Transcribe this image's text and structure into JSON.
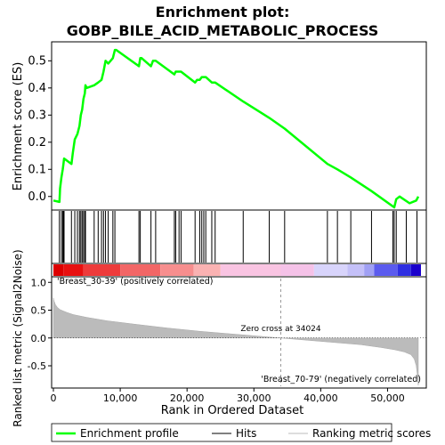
{
  "chart_data": [
    {
      "type": "line",
      "panel": "enrichment-profile",
      "title_line1": "Enrichment plot:",
      "title_line2": "GOBP_BILE_ACID_METABOLIC_PROCESS",
      "ylabel": "Enrichment score (ES)",
      "ylim": [
        -0.05,
        0.57
      ],
      "yticks": [
        0.0,
        0.1,
        0.2,
        0.3,
        0.4,
        0.5
      ],
      "ytick_labels": [
        "0.0",
        "0.1",
        "0.2",
        "0.3",
        "0.4",
        "0.5"
      ],
      "xlim": [
        0,
        55000
      ],
      "series": [
        {
          "name": "Enrichment profile",
          "color": "#00ff00",
          "x": [
            0,
            900,
            1000,
            1200,
            1400,
            1500,
            1600,
            2700,
            2900,
            3200,
            3600,
            3900,
            4100,
            4300,
            4500,
            4700,
            4800,
            5000,
            6100,
            6700,
            7200,
            7500,
            7800,
            8200,
            8900,
            9200,
            9400,
            12800,
            13000,
            13200,
            14600,
            14900,
            15300,
            18100,
            18300,
            18600,
            18800,
            19100,
            21200,
            21500,
            21900,
            22200,
            22500,
            22800,
            23700,
            24200,
            28400,
            32300,
            34600,
            41000,
            42500,
            44500,
            47600,
            51000,
            51300,
            51800,
            53300,
            54300,
            54600
          ],
          "y": [
            -0.015,
            -0.02,
            0.03,
            0.07,
            0.1,
            0.12,
            0.14,
            0.12,
            0.16,
            0.21,
            0.23,
            0.26,
            0.3,
            0.32,
            0.36,
            0.38,
            0.41,
            0.4,
            0.41,
            0.42,
            0.43,
            0.46,
            0.5,
            0.49,
            0.51,
            0.54,
            0.54,
            0.48,
            0.51,
            0.51,
            0.48,
            0.5,
            0.5,
            0.45,
            0.46,
            0.46,
            0.46,
            0.46,
            0.42,
            0.43,
            0.43,
            0.44,
            0.44,
            0.44,
            0.42,
            0.42,
            0.35,
            0.29,
            0.25,
            0.12,
            0.1,
            0.07,
            0.02,
            -0.04,
            -0.01,
            0.0,
            -0.025,
            -0.015,
            0.0
          ]
        }
      ]
    },
    {
      "type": "hits",
      "panel": "hit-markers",
      "series": [
        {
          "name": "Hits",
          "color": "#000000",
          "x": [
            900,
            1200,
            1400,
            1500,
            1600,
            2700,
            3200,
            3600,
            3900,
            4100,
            4300,
            4500,
            4700,
            4800,
            6100,
            6700,
            7200,
            7500,
            7800,
            8200,
            8900,
            9200,
            12800,
            13000,
            14600,
            15300,
            18100,
            18300,
            18800,
            19100,
            21200,
            21900,
            22200,
            22500,
            22800,
            23700,
            24200,
            28400,
            32300,
            34600,
            41000,
            42500,
            44500,
            47600,
            50800,
            51000,
            51300,
            52800,
            54400
          ]
        }
      ]
    },
    {
      "type": "area",
      "panel": "ranked-list-metric",
      "xlabel": "Rank in Ordered Dataset",
      "ylabel": "Ranked list metric (Signal2Noise)",
      "xlim": [
        0,
        55000
      ],
      "ylim": [
        -0.9,
        1.1
      ],
      "xticks": [
        0,
        10000,
        20000,
        30000,
        40000,
        50000
      ],
      "xtick_labels": [
        "0",
        "10,000",
        "20,000",
        "30,000",
        "40,000",
        "50,000"
      ],
      "yticks": [
        -0.5,
        0.0,
        0.5,
        1.0
      ],
      "ytick_labels": [
        "-0.5",
        "0.0",
        "0.5",
        "1.0"
      ],
      "zero_cross": 34024,
      "zero_cross_label": "Zero cross at 34024",
      "positive_label": "'Breast_30-39' (positively correlated)",
      "negative_label": "'Breast_70-79' (negatively correlated)",
      "series": [
        {
          "name": "Ranking metric scores",
          "color": "#bbbbbb",
          "x": [
            0,
            100,
            300,
            600,
            1000,
            2000,
            3000,
            5000,
            8000,
            12000,
            17000,
            22000,
            27000,
            31000,
            34024,
            38000,
            42000,
            46000,
            49000,
            51000,
            52500,
            53500,
            54000,
            54300,
            54500,
            54600
          ],
          "y": [
            0.72,
            0.66,
            0.6,
            0.55,
            0.51,
            0.46,
            0.42,
            0.37,
            0.31,
            0.25,
            0.18,
            0.12,
            0.07,
            0.03,
            0.0,
            -0.04,
            -0.08,
            -0.12,
            -0.17,
            -0.21,
            -0.25,
            -0.3,
            -0.38,
            -0.5,
            -0.7,
            -0.85
          ]
        }
      ]
    }
  ],
  "colors": {
    "enrichment_line": "#00ff00",
    "hit_line": "#000000",
    "metric_fill": "#bbbbbb",
    "positive_label": "#cc0000",
    "negative_label": "#0000cc",
    "zero_line": "#000000"
  },
  "gradient_bar": {
    "segments": [
      {
        "from": 0,
        "to": 1500,
        "color": "#dd0000"
      },
      {
        "from": 1500,
        "to": 4500,
        "color": "#e81010"
      },
      {
        "from": 4500,
        "to": 10000,
        "color": "#ee3b3b"
      },
      {
        "from": 10000,
        "to": 16000,
        "color": "#f26666"
      },
      {
        "from": 16000,
        "to": 21000,
        "color": "#f78e8e"
      },
      {
        "from": 21000,
        "to": 25000,
        "color": "#fab2b2"
      },
      {
        "from": 25000,
        "to": 34024,
        "color": "#f9c4e2"
      },
      {
        "from": 34024,
        "to": 39000,
        "color": "#f5c2e8"
      },
      {
        "from": 39000,
        "to": 44000,
        "color": "#d8d4fb"
      },
      {
        "from": 44000,
        "to": 46500,
        "color": "#c4c0f8"
      },
      {
        "from": 46500,
        "to": 48000,
        "color": "#a0a0f4"
      },
      {
        "from": 48000,
        "to": 51500,
        "color": "#5b5bee"
      },
      {
        "from": 51500,
        "to": 53500,
        "color": "#2f2fe2"
      },
      {
        "from": 53500,
        "to": 55000,
        "color": "#1a00cc"
      }
    ]
  },
  "legend": {
    "items": [
      {
        "label": "Enrichment profile",
        "color": "#00ff00",
        "kind": "line-thick"
      },
      {
        "label": "Hits",
        "color": "#000000",
        "kind": "line-thin"
      },
      {
        "label": "Ranking metric scores",
        "color": "#bbbbbb",
        "kind": "line-thin"
      }
    ]
  }
}
